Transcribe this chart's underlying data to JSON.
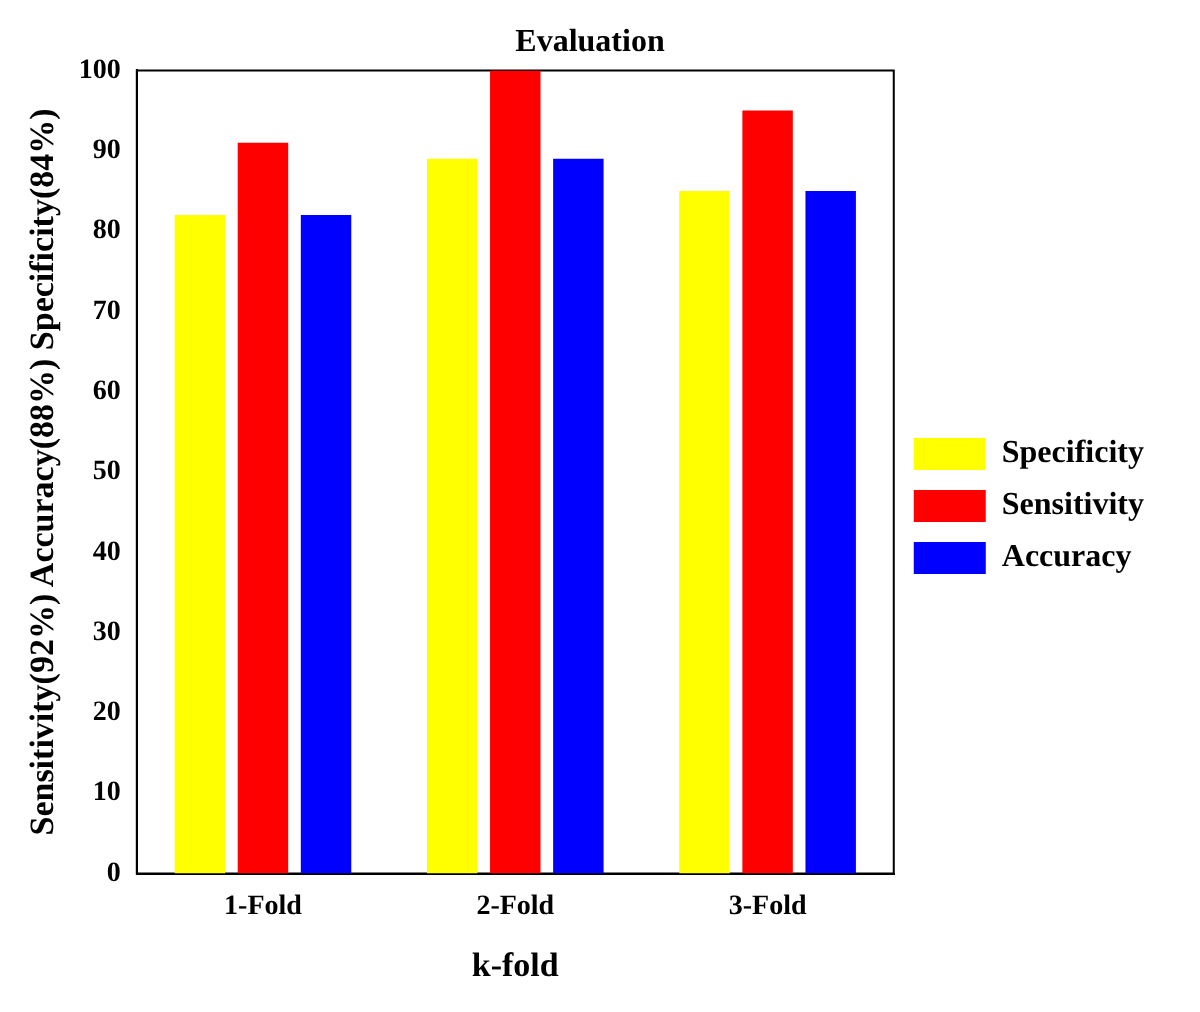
{
  "chart_data": {
    "type": "bar",
    "title": "Evaluation",
    "xlabel": "k-fold",
    "ylabel": "Sensitivity(92%) Accuracy(88%) Specificity(84%)",
    "categories": [
      "1-Fold",
      "2-Fold",
      "3-Fold"
    ],
    "series": [
      {
        "name": "Specificity",
        "color": "#ffff00",
        "values": [
          82,
          89,
          85
        ]
      },
      {
        "name": "Sensitivity",
        "color": "#ff0000",
        "values": [
          91,
          100,
          95
        ]
      },
      {
        "name": "Accuracy",
        "color": "#0000ff",
        "values": [
          82,
          89,
          85
        ]
      }
    ],
    "ylim": [
      0,
      100
    ],
    "yticks": [
      0,
      10,
      20,
      30,
      40,
      50,
      60,
      70,
      80,
      90,
      100
    ],
    "grid": false,
    "legend": "right"
  }
}
